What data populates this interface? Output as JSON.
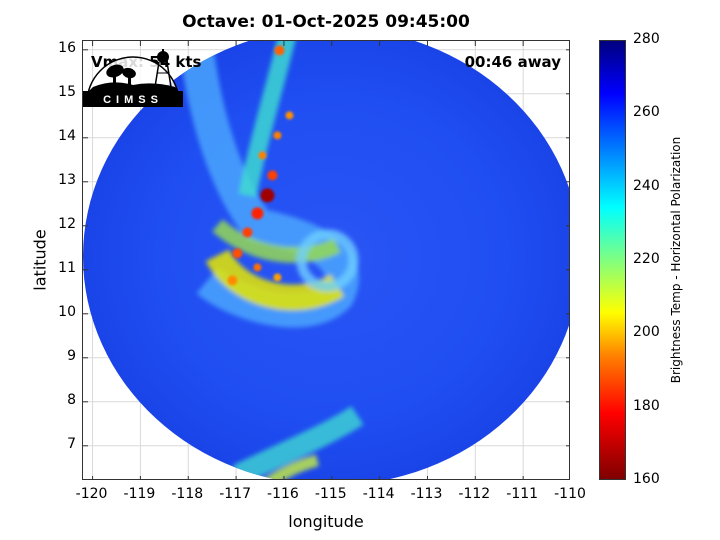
{
  "figure": {
    "title": "Octave: 01-Oct-2025 09:45:00",
    "vmax_label": "Vmax: 54 kts",
    "time_away_label": "00:46 away",
    "logo_text": "CIMSS"
  },
  "chart_data": {
    "type": "heatmap",
    "title": "Octave: 01-Oct-2025 09:45:00",
    "xlabel": "longitude",
    "ylabel": "latitude",
    "xlim": [
      -120.2,
      -110
    ],
    "ylim": [
      6.2,
      16.2
    ],
    "x_ticks": [
      -120,
      -119,
      -118,
      -117,
      -116,
      -115,
      -114,
      -113,
      -112,
      -111,
      -110
    ],
    "x_tick_labels": [
      "-120",
      "-119",
      "-118",
      "-117",
      "-116",
      "-115",
      "-114",
      "-113",
      "-112",
      "-111",
      "-110"
    ],
    "y_ticks": [
      7,
      8,
      9,
      10,
      11,
      12,
      13,
      14,
      15,
      16
    ],
    "y_tick_labels": [
      "7",
      "8",
      "9",
      "10",
      "11",
      "12",
      "13",
      "14",
      "15",
      "16"
    ],
    "grid": true,
    "colorbar": {
      "label": "Brightness Temp - Horizontal Polarization",
      "range": [
        160,
        280
      ],
      "ticks": [
        160,
        180,
        200,
        220,
        240,
        260,
        280
      ],
      "tick_labels": [
        "160",
        "180",
        "200",
        "220",
        "240",
        "260",
        "280"
      ],
      "colormap": "jet"
    },
    "swath_center": [
      -115,
      11.3
    ],
    "swath_radius_deg": 5.2,
    "storm_center": [
      -115.3,
      11.1
    ]
  },
  "colors": {
    "background_field": "#1a4df0",
    "cold_core": "#7f0000"
  }
}
